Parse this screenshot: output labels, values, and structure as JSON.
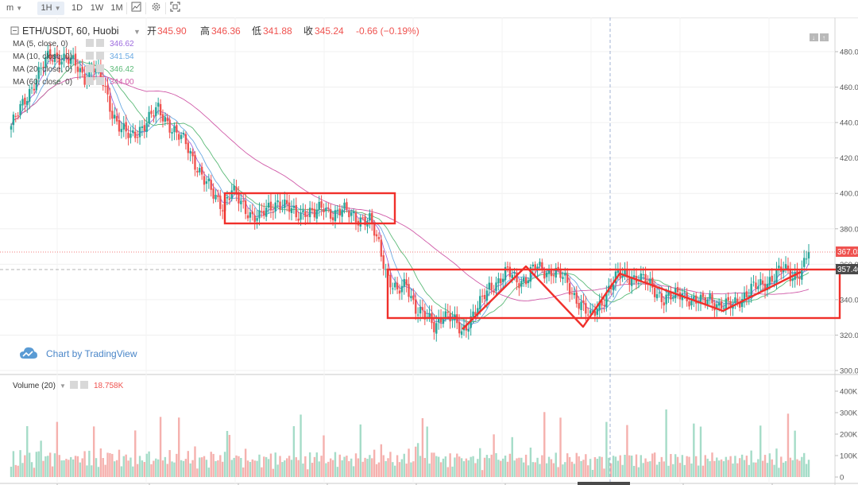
{
  "toolbar": {
    "symbol_search": "m",
    "interval": "1H",
    "ranges": [
      "1D",
      "1W",
      "1M"
    ]
  },
  "legend": {
    "symbol_title": "ETH/USDT, 60, Huobi",
    "open_label": "开",
    "open_value": "345.90",
    "high_label": "高",
    "high_value": "346.36",
    "low_label": "低",
    "low_value": "341.88",
    "close_label": "收",
    "close_value": "345.24",
    "change": "-0.66 (−0.19%)",
    "ma_rows": [
      {
        "label": "MA (5, close, 0)",
        "value": "346.62",
        "color": "#9c6ade"
      },
      {
        "label": "MA (10, close, 0)",
        "value": "341.54",
        "color": "#6aa9e3"
      },
      {
        "label": "MA (20, close, 0)",
        "value": "346.42",
        "color": "#5cba78"
      },
      {
        "label": "MA (60, close, 0)",
        "value": "344.00",
        "color": "#d05aa8"
      }
    ],
    "volume_label": "Volume (20)",
    "volume_value": "18.758K"
  },
  "watermark": "Chart by TradingView",
  "price_badges": {
    "last": "367.03",
    "line": "357.40"
  },
  "colors": {
    "up": "#26a69a",
    "down": "#ef5350",
    "vol_up": "#a5dcc8",
    "vol_down": "#f5b1ae",
    "annotation": "#f0302b"
  },
  "chart_data": {
    "type": "candlestick",
    "price_axis": {
      "ticks": [
        300,
        320,
        340,
        360,
        380,
        400,
        420,
        440,
        460,
        480
      ],
      "range": [
        298,
        492
      ]
    },
    "volume_axis": {
      "ticks": [
        "0",
        "100K",
        "200K",
        "300K",
        "400K"
      ],
      "range": [
        0,
        420000
      ]
    },
    "price_anchors": [
      [
        0,
        438
      ],
      [
        4,
        447
      ],
      [
        8,
        458
      ],
      [
        12,
        468
      ],
      [
        16,
        476
      ],
      [
        20,
        478
      ],
      [
        24,
        476
      ],
      [
        28,
        472
      ],
      [
        32,
        466
      ],
      [
        36,
        471
      ],
      [
        40,
        462
      ],
      [
        44,
        446
      ],
      [
        48,
        436
      ],
      [
        52,
        431
      ],
      [
        56,
        437
      ],
      [
        60,
        442
      ],
      [
        64,
        447
      ],
      [
        68,
        441
      ],
      [
        72,
        433
      ],
      [
        76,
        428
      ],
      [
        80,
        418
      ],
      [
        84,
        407
      ],
      [
        88,
        399
      ],
      [
        92,
        394
      ],
      [
        96,
        401
      ],
      [
        100,
        394
      ],
      [
        104,
        389
      ],
      [
        108,
        386
      ],
      [
        112,
        391
      ],
      [
        116,
        396
      ],
      [
        120,
        392
      ],
      [
        124,
        387
      ],
      [
        128,
        391
      ],
      [
        132,
        388
      ],
      [
        136,
        392
      ],
      [
        140,
        389
      ],
      [
        144,
        390
      ],
      [
        148,
        388
      ],
      [
        152,
        386
      ],
      [
        156,
        384
      ],
      [
        160,
        371
      ],
      [
        164,
        353
      ],
      [
        168,
        343
      ],
      [
        172,
        349
      ],
      [
        176,
        336
      ],
      [
        180,
        330
      ],
      [
        184,
        325
      ],
      [
        188,
        333
      ],
      [
        192,
        328
      ],
      [
        196,
        322
      ],
      [
        200,
        330
      ],
      [
        204,
        337
      ],
      [
        208,
        347
      ],
      [
        212,
        351
      ],
      [
        216,
        355
      ],
      [
        220,
        351
      ],
      [
        224,
        352
      ],
      [
        228,
        358
      ],
      [
        232,
        356
      ],
      [
        236,
        357
      ],
      [
        240,
        352
      ],
      [
        244,
        344
      ],
      [
        248,
        338
      ],
      [
        252,
        329
      ],
      [
        256,
        337
      ],
      [
        260,
        346
      ],
      [
        264,
        353
      ],
      [
        268,
        354
      ],
      [
        272,
        352
      ],
      [
        276,
        350
      ],
      [
        280,
        346
      ],
      [
        284,
        340
      ],
      [
        288,
        341
      ],
      [
        292,
        345
      ],
      [
        296,
        339
      ],
      [
        300,
        338
      ],
      [
        304,
        342
      ],
      [
        308,
        336
      ],
      [
        312,
        336
      ],
      [
        316,
        340
      ],
      [
        320,
        343
      ],
      [
        324,
        347
      ],
      [
        328,
        350
      ],
      [
        332,
        353
      ],
      [
        336,
        357
      ],
      [
        340,
        354
      ],
      [
        344,
        356
      ],
      [
        347,
        367
      ]
    ],
    "ma_colors": [
      "#9c6ade",
      "#6aa9e3",
      "#5cba78",
      "#d05aa8"
    ]
  }
}
